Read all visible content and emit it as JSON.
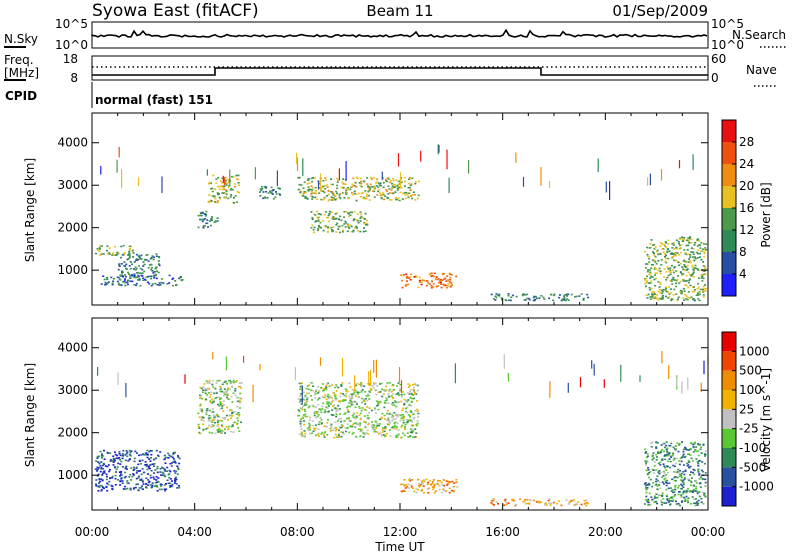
{
  "header": {
    "station": "Syowa East (fitACF)",
    "beam": "Beam 11",
    "date": "01/Sep/2009"
  },
  "top_panels": {
    "nsky_label": "N.Sky",
    "nsearch_label": "N.Search",
    "nsky_ticks": [
      "10^5",
      "10^0"
    ],
    "nsearch_ticks": [
      "10^5",
      "10^0"
    ],
    "freq_label_1": "Freq.",
    "freq_label_2": "[MHz]",
    "freq_ticks": [
      "18",
      "8"
    ],
    "nave_label": "Nave",
    "nave_ticks": [
      "60",
      "0"
    ],
    "cpid_label": "CPID",
    "cpid_value": "normal (fast) 151"
  },
  "colors": {
    "power": [
      "#1f1fff",
      "#2a4ea3",
      "#2e8b57",
      "#4d9a4d",
      "#e8c020",
      "#f08c10",
      "#f05010",
      "#e81010"
    ],
    "velocity": [
      "#1e1ed2",
      "#2a50a0",
      "#2e8b57",
      "#5ac832",
      "#c0c0c0",
      "#f0b400",
      "#f08c00",
      "#f04600",
      "#e60000"
    ]
  },
  "chart_data": [
    {
      "type": "heatmap",
      "name": "power",
      "xlabel": "",
      "ylabel": "Slant Range [km]",
      "xlim": [
        0,
        24
      ],
      "ylim": [
        180,
        4700
      ],
      "yticks": [
        "1000",
        "2000",
        "3000",
        "4000"
      ],
      "colorbar": {
        "label": "Power [dB]",
        "ticks": [
          "4",
          "8",
          "12",
          "16",
          "20",
          "24",
          "28"
        ],
        "range": [
          0,
          32
        ]
      },
      "regions": [
        {
          "t0": 0.1,
          "t1": 1.6,
          "r0": 1350,
          "r1": 1600,
          "level": 0.45
        },
        {
          "t0": 1.0,
          "t1": 2.6,
          "r0": 850,
          "r1": 1400,
          "level": 0.3
        },
        {
          "t0": 0.3,
          "t1": 3.5,
          "r0": 650,
          "r1": 900,
          "level": 0.25
        },
        {
          "t0": 4.5,
          "t1": 5.7,
          "r0": 2600,
          "r1": 3250,
          "level": 0.5
        },
        {
          "t0": 4.1,
          "t1": 4.9,
          "r0": 2000,
          "r1": 2400,
          "level": 0.3
        },
        {
          "t0": 6.4,
          "t1": 7.3,
          "r0": 2700,
          "r1": 3000,
          "level": 0.3
        },
        {
          "t0": 8.0,
          "t1": 12.7,
          "r0": 2650,
          "r1": 3200,
          "level": 0.5
        },
        {
          "t0": 8.5,
          "t1": 10.7,
          "r0": 1900,
          "r1": 2400,
          "level": 0.45
        },
        {
          "t0": 12.0,
          "t1": 14.2,
          "r0": 600,
          "r1": 950,
          "level": 0.75
        },
        {
          "t0": 15.5,
          "t1": 19.3,
          "r0": 300,
          "r1": 460,
          "level": 0.3
        },
        {
          "t0": 21.5,
          "t1": 23.9,
          "r0": 300,
          "r1": 1800,
          "level": 0.45
        }
      ]
    },
    {
      "type": "heatmap",
      "name": "velocity",
      "xlabel": "Time UT",
      "ylabel": "Slant Range [km]",
      "xlim": [
        0,
        24
      ],
      "ylim": [
        180,
        4700
      ],
      "xticks": [
        "00:00",
        "04:00",
        "08:00",
        "12:00",
        "16:00",
        "20:00",
        "00:00"
      ],
      "yticks": [
        "1000",
        "2000",
        "3000",
        "4000"
      ],
      "colorbar": {
        "label": "Velocity [m s^-1]",
        "ticks": [
          "1000",
          "500",
          "100",
          "25",
          "-25",
          "-100",
          "-500",
          "-1000"
        ]
      },
      "regions": [
        {
          "t0": 0.1,
          "t1": 3.4,
          "r0": 650,
          "r1": 1600,
          "level": 0.15
        },
        {
          "t0": 4.1,
          "t1": 5.8,
          "r0": 2000,
          "r1": 3250,
          "level": 0.45
        },
        {
          "t0": 8.0,
          "t1": 12.7,
          "r0": 1900,
          "r1": 3200,
          "level": 0.45
        },
        {
          "t0": 12.0,
          "t1": 14.2,
          "r0": 600,
          "r1": 950,
          "level": 0.65
        },
        {
          "t0": 15.5,
          "t1": 19.3,
          "r0": 300,
          "r1": 460,
          "level": 0.65
        },
        {
          "t0": 21.5,
          "t1": 23.9,
          "r0": 300,
          "r1": 1800,
          "level": 0.3
        }
      ]
    }
  ]
}
